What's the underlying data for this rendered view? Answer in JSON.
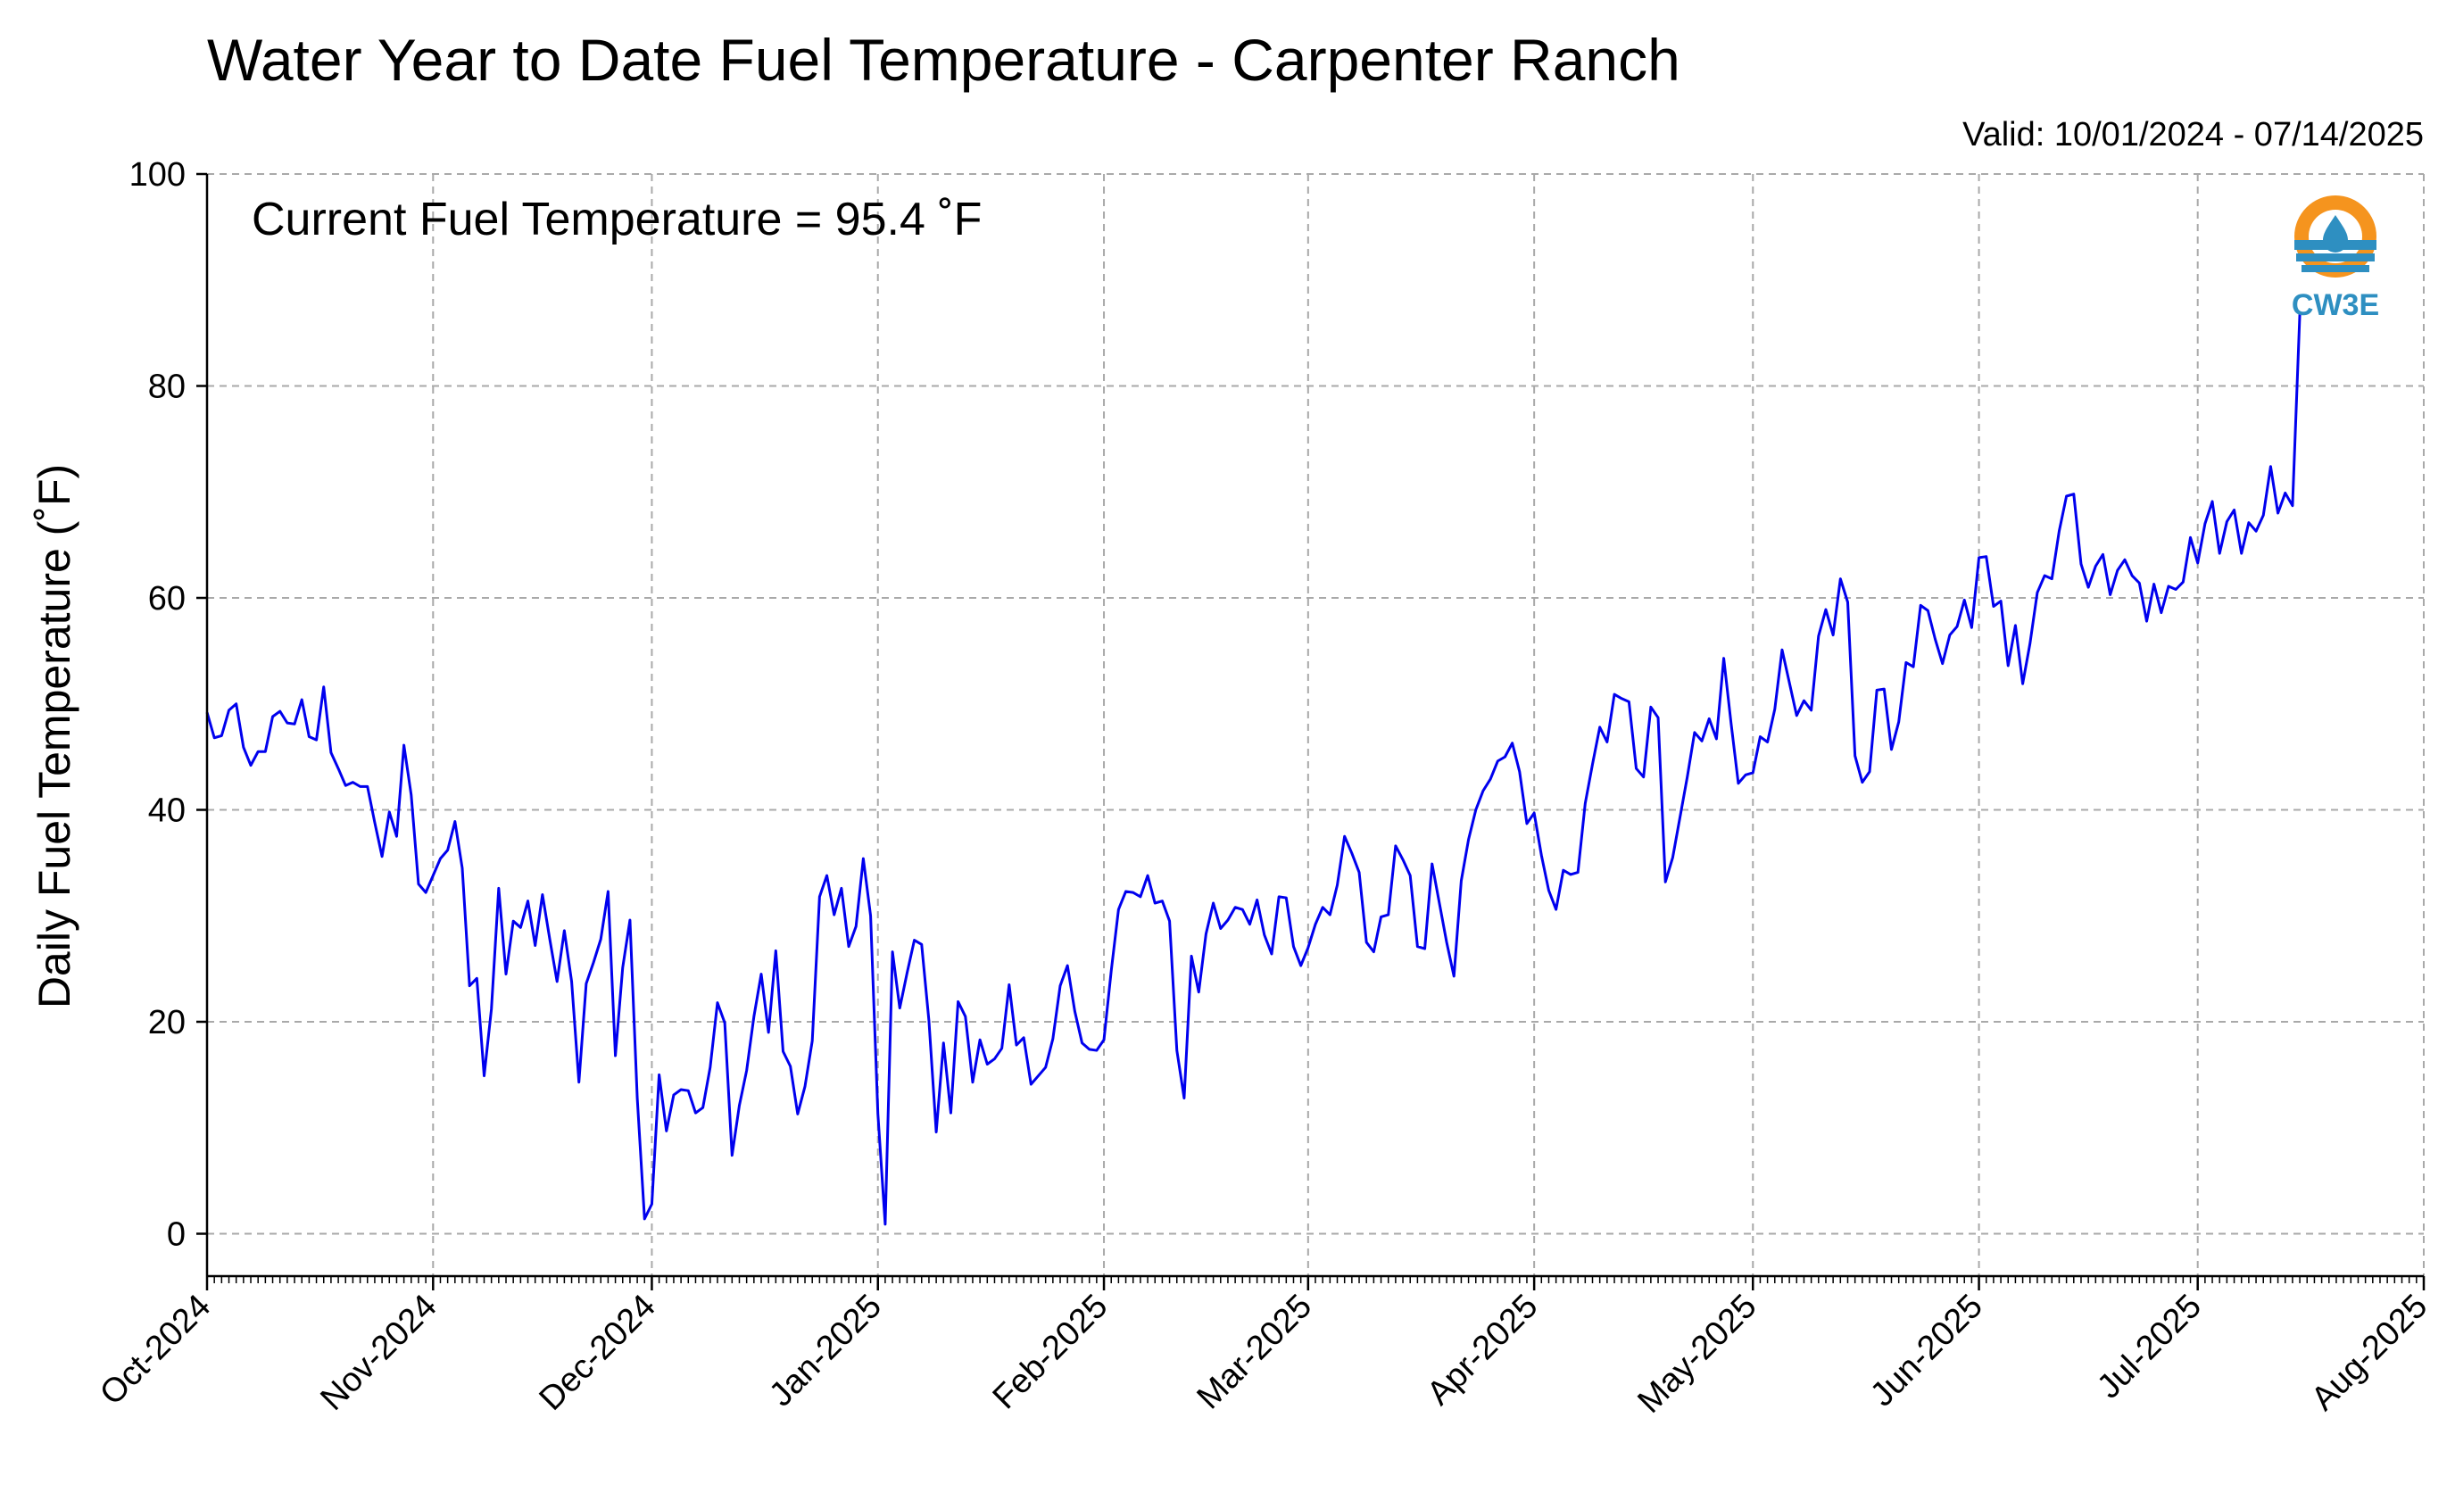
{
  "chart_data": {
    "type": "line",
    "title": "Water Year to Date Fuel Temperature - Carpenter Ranch",
    "subtitle": "Valid: 10/01/2024 - 07/14/2025",
    "annotation": "Current Fuel Temperature = 95.4 ˚F",
    "ylabel": "Daily Fuel Temperature (˚F)",
    "xlabel": "",
    "ylim": [
      -4,
      100
    ],
    "yticks": [
      0,
      20,
      40,
      60,
      80,
      100
    ],
    "xlim": [
      "2024-10-01",
      "2025-08-01"
    ],
    "xticks": [
      {
        "date": "2024-10-01",
        "label": "Oct-2024"
      },
      {
        "date": "2024-11-01",
        "label": "Nov-2024"
      },
      {
        "date": "2024-12-01",
        "label": "Dec-2024"
      },
      {
        "date": "2025-01-01",
        "label": "Jan-2025"
      },
      {
        "date": "2025-02-01",
        "label": "Feb-2025"
      },
      {
        "date": "2025-03-01",
        "label": "Mar-2025"
      },
      {
        "date": "2025-04-01",
        "label": "Apr-2025"
      },
      {
        "date": "2025-05-01",
        "label": "May-2025"
      },
      {
        "date": "2025-06-01",
        "label": "Jun-2025"
      },
      {
        "date": "2025-07-01",
        "label": "Jul-2025"
      },
      {
        "date": "2025-08-01",
        "label": "Aug-2025"
      }
    ],
    "grid": true,
    "line_color": "#0000ee",
    "series": [
      {
        "x_start": "2024-10-01",
        "x_step_days": 1,
        "values": [
          49.2,
          46.8,
          47.0,
          49.4,
          50.0,
          45.9,
          44.2,
          45.5,
          45.5,
          48.8,
          49.3,
          48.2,
          48.1,
          50.4,
          46.9,
          46.6,
          51.6,
          45.4,
          43.9,
          42.3,
          42.6,
          42.2,
          42.2,
          38.8,
          35.6,
          39.8,
          37.5,
          46.1,
          41.4,
          33.0,
          32.2,
          33.8,
          35.4,
          36.2,
          38.9,
          34.5,
          23.4,
          24.1,
          14.9,
          21.2,
          32.6,
          24.5,
          29.5,
          28.9,
          31.4,
          27.2,
          32.0,
          27.8,
          23.8,
          28.6,
          23.8,
          14.3,
          23.6,
          25.6,
          27.8,
          32.3,
          16.8,
          25.1,
          29.6,
          12.8,
          1.4,
          2.8,
          15.0,
          9.7,
          13.1,
          13.6,
          13.5,
          11.4,
          11.9,
          15.7,
          21.8,
          19.9,
          7.4,
          12.1,
          15.4,
          20.5,
          24.5,
          19.0,
          26.7,
          17.2,
          15.8,
          11.3,
          13.9,
          18.2,
          31.8,
          33.8,
          30.1,
          32.6,
          27.1,
          29.0,
          35.4,
          30.0,
          11.3,
          0.9,
          26.6,
          21.3,
          24.6,
          27.7,
          27.3,
          20.1,
          9.6,
          18.0,
          11.4,
          21.9,
          20.5,
          14.3,
          18.3,
          16.0,
          16.5,
          17.5,
          23.5,
          17.8,
          18.5,
          14.1,
          14.9,
          15.7,
          18.4,
          23.4,
          25.3,
          21.0,
          18.0,
          17.4,
          17.3,
          18.3,
          24.8,
          30.6,
          32.3,
          32.2,
          31.8,
          33.8,
          31.2,
          31.4,
          29.5,
          17.3,
          12.8,
          26.2,
          22.8,
          28.3,
          31.2,
          28.8,
          29.6,
          30.8,
          30.6,
          29.2,
          31.5,
          28.2,
          26.4,
          31.8,
          31.7,
          27.1,
          25.3,
          27.0,
          29.2,
          30.8,
          30.1,
          32.9,
          37.5,
          35.9,
          34.1,
          27.5,
          26.6,
          29.9,
          30.1,
          36.6,
          35.3,
          33.8,
          27.1,
          26.9,
          34.9,
          31.2,
          27.5,
          24.3,
          33.3,
          37.2,
          40.0,
          41.8,
          42.9,
          44.6,
          45.0,
          46.3,
          43.6,
          38.7,
          39.7,
          35.7,
          32.4,
          30.6,
          34.3,
          33.9,
          34.1,
          40.6,
          44.3,
          47.8,
          46.4,
          50.9,
          50.5,
          50.2,
          43.9,
          43.1,
          49.7,
          48.7,
          33.2,
          35.5,
          39.3,
          43.1,
          47.3,
          46.5,
          48.6,
          46.7,
          54.3,
          48.2,
          42.5,
          43.3,
          43.5,
          46.9,
          46.4,
          49.5,
          55.1,
          52.0,
          48.9,
          50.3,
          49.4,
          56.4,
          58.9,
          56.5,
          61.8,
          59.6,
          45.1,
          42.6,
          43.6,
          51.3,
          51.4,
          45.7,
          48.3,
          53.9,
          53.5,
          59.3,
          58.8,
          56.1,
          53.8,
          56.5,
          57.3,
          59.8,
          57.2,
          63.8,
          63.9,
          59.2,
          59.7,
          53.6,
          57.4,
          51.9,
          55.7,
          60.5,
          62.1,
          61.8,
          66.3,
          69.6,
          69.8,
          63.2,
          61.0,
          63.0,
          64.1,
          60.3,
          62.6,
          63.6,
          62.1,
          61.4,
          57.8,
          61.3,
          58.6,
          61.1,
          60.8,
          61.5,
          65.7,
          63.3,
          67.0,
          69.1,
          64.2,
          67.2,
          68.3,
          64.2,
          67.1,
          66.3,
          67.8,
          72.4,
          68.0,
          69.9,
          68.7,
          86.8
        ]
      }
    ]
  },
  "logo": {
    "text": "CW3E",
    "ring_color": "#f5941e",
    "wave_color": "#2e8fc1"
  }
}
